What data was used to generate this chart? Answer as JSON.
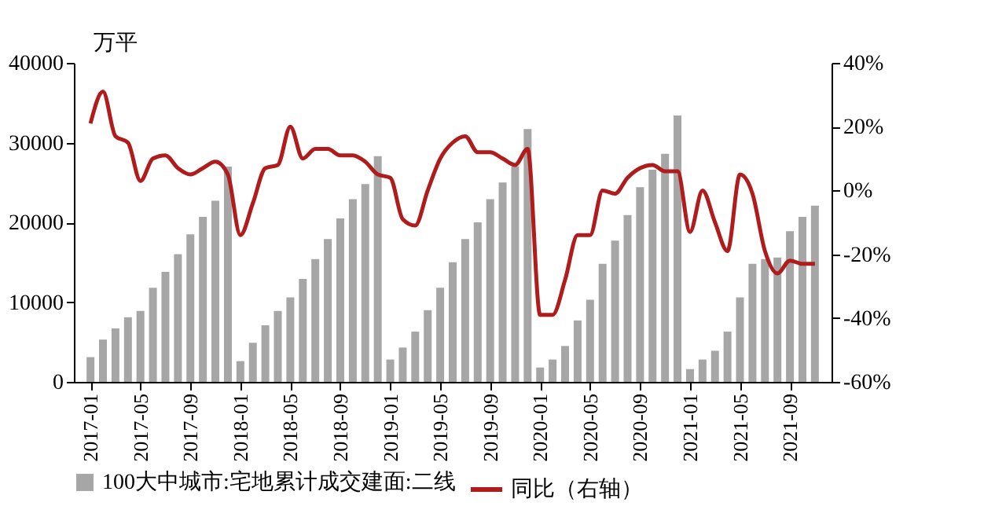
{
  "chart_data": {
    "type": "bar",
    "ylabel": "万平",
    "categories": [
      "2017-01",
      null,
      null,
      null,
      "2017-05",
      null,
      null,
      null,
      "2017-09",
      null,
      null,
      null,
      "2018-01",
      null,
      null,
      null,
      "2018-05",
      null,
      null,
      null,
      "2018-09",
      null,
      null,
      null,
      "2019-01",
      null,
      null,
      null,
      "2019-05",
      null,
      null,
      null,
      "2019-09",
      null,
      null,
      null,
      "2020-01",
      null,
      null,
      null,
      "2020-05",
      null,
      null,
      null,
      "2020-09",
      null,
      null,
      null,
      "2021-01",
      null,
      null,
      null,
      "2021-05",
      null,
      null,
      null,
      "2021-09",
      null,
      null
    ],
    "series": [
      {
        "name": "100大中城市:宅地累计成交建面:二线",
        "color": "#a6a6a6",
        "values": [
          3100,
          5300,
          6700,
          8100,
          8900,
          11800,
          13800,
          16000,
          18500,
          20700,
          22700,
          27000,
          2600,
          4900,
          7100,
          8900,
          10600,
          12900,
          15400,
          17900,
          20500,
          22900,
          24800,
          28300,
          2800,
          4300,
          6300,
          9000,
          11800,
          15000,
          17900,
          20000,
          22900,
          25000,
          27000,
          31700,
          1800,
          2800,
          4500,
          7700,
          10300,
          14800,
          17700,
          20900,
          24400,
          26600,
          28600,
          33400,
          1600,
          2800,
          3900,
          6300,
          10600,
          14800,
          15400,
          15600,
          18900,
          20700,
          22100
        ]
      },
      {
        "name": "同比（右轴）",
        "type": "line",
        "axis": "y2",
        "color": "#b01c1c",
        "values": [
          21,
          31,
          17,
          15,
          3,
          10,
          11,
          7,
          5,
          7,
          9,
          5,
          -14,
          -4,
          7,
          8,
          20,
          10,
          13,
          13,
          11,
          11,
          9,
          5,
          4,
          -9,
          -11,
          0,
          10,
          15,
          17,
          12,
          12,
          10,
          8,
          13,
          -39,
          -39,
          -28,
          -14,
          -14,
          0,
          -1,
          4,
          7,
          8,
          6,
          6,
          -13,
          0,
          -10,
          -19,
          5,
          -1,
          -19,
          -26,
          -22,
          -23,
          -23
        ]
      }
    ],
    "ylim": [
      0,
      40000
    ],
    "yticks": [
      0,
      10000,
      20000,
      30000,
      40000
    ],
    "y2lim": [
      -60,
      40
    ],
    "y2ticks": [
      {
        "value": -60,
        "label": "-60%"
      },
      {
        "value": -40,
        "label": "-40%"
      },
      {
        "value": -20,
        "label": "-20%"
      },
      {
        "value": 0,
        "label": "0%"
      },
      {
        "value": 20,
        "label": "20%"
      },
      {
        "value": 40,
        "label": "40%"
      }
    ],
    "grid": false,
    "legend": "bottom",
    "marker": "none",
    "line_style": "solid"
  }
}
